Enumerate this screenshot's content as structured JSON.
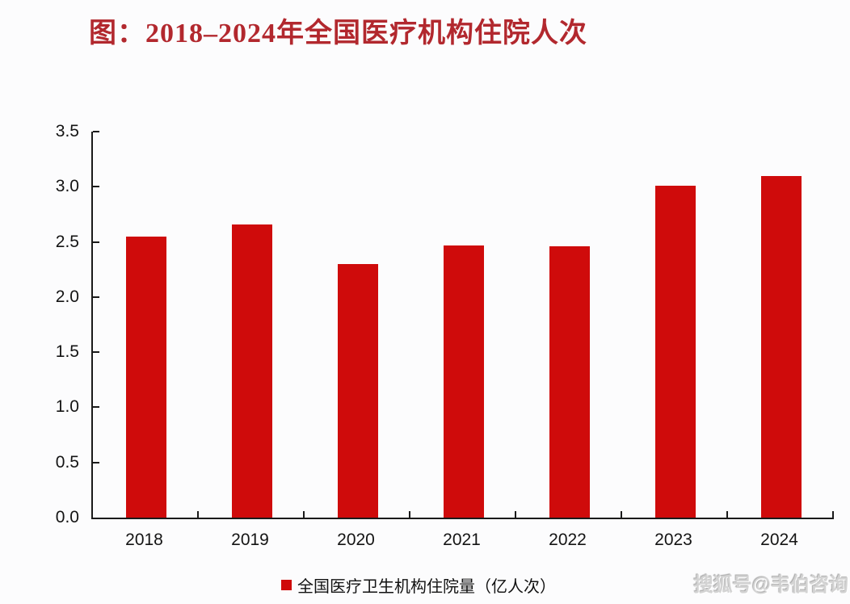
{
  "page": {
    "background": "#fcfcfd"
  },
  "title": {
    "text": "图：2018–2024年全国医疗机构住院人次",
    "color": "#b2282e"
  },
  "legend": {
    "label": "全国医疗卫生机构住院量（亿人次）",
    "swatch_color": "#cf0b0b"
  },
  "watermark": {
    "text": "搜狐号@韦伯咨询"
  },
  "chart_data": {
    "type": "bar",
    "title": "图：2018–2024年全国医疗机构住院人次",
    "categories": [
      "2018",
      "2019",
      "2020",
      "2021",
      "2022",
      "2023",
      "2024"
    ],
    "values": [
      2.55,
      2.66,
      2.3,
      2.47,
      2.46,
      3.01,
      3.1
    ],
    "series_name": "全国医疗卫生机构住院量（亿人次）",
    "xlabel": "",
    "ylabel": "",
    "ylim": [
      0,
      3.5
    ],
    "ytick_step": 0.5,
    "ytick_labels": [
      "0.0",
      "0.5",
      "1.0",
      "1.5",
      "2.0",
      "2.5",
      "3.0",
      "3.5"
    ],
    "bar_color": "#cf0b0b",
    "axis_color": "#1a1a1a",
    "grid": false,
    "legend_position": "bottom"
  }
}
